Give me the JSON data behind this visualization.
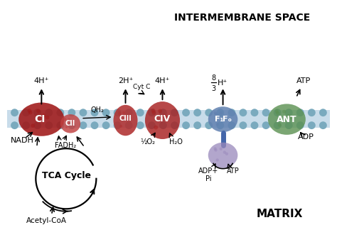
{
  "title_top": "INTERMEMBRANE SPACE",
  "title_bottom": "MATRIX",
  "bg_color": "#ffffff",
  "membrane_color": "#c8dcea",
  "membrane_dot_color": "#7aaabe",
  "CI_color": "#a01818",
  "CII_color": "#c04040",
  "CIII_color": "#b03030",
  "CIV_color": "#a82020",
  "F1Fo_mem_color": "#6080b0",
  "F1Fo_stalk_color": "#5070a0",
  "F1Fo_bot_color": "#9988bb",
  "ANT_color": "#5a9050",
  "labels": {
    "CI": "CI",
    "CII": "CII",
    "CIII": "CIII",
    "CIV": "CIV",
    "F1": "F₁",
    "Fo": "Fₒ",
    "ANT": "ANT",
    "4H_left": "4H⁺",
    "2H": "2H⁺",
    "4H_mid": "4H⁺",
    "FADH2": "FADH₂",
    "NADH": "NADH",
    "QH2": "QH₂",
    "CytC": "Cyt C",
    "half_O2": "½O₂",
    "H2O": "H₂O",
    "ADP_Pi": "ADP+\nPi",
    "ATP_bot": "ATP",
    "ATP_top": "ATP",
    "ADP_right": "ADP",
    "TCA": "TCA Cycle",
    "AcetylCoA": "Acetyl-CoA"
  },
  "figsize": [
    4.74,
    3.41
  ],
  "dpi": 100
}
